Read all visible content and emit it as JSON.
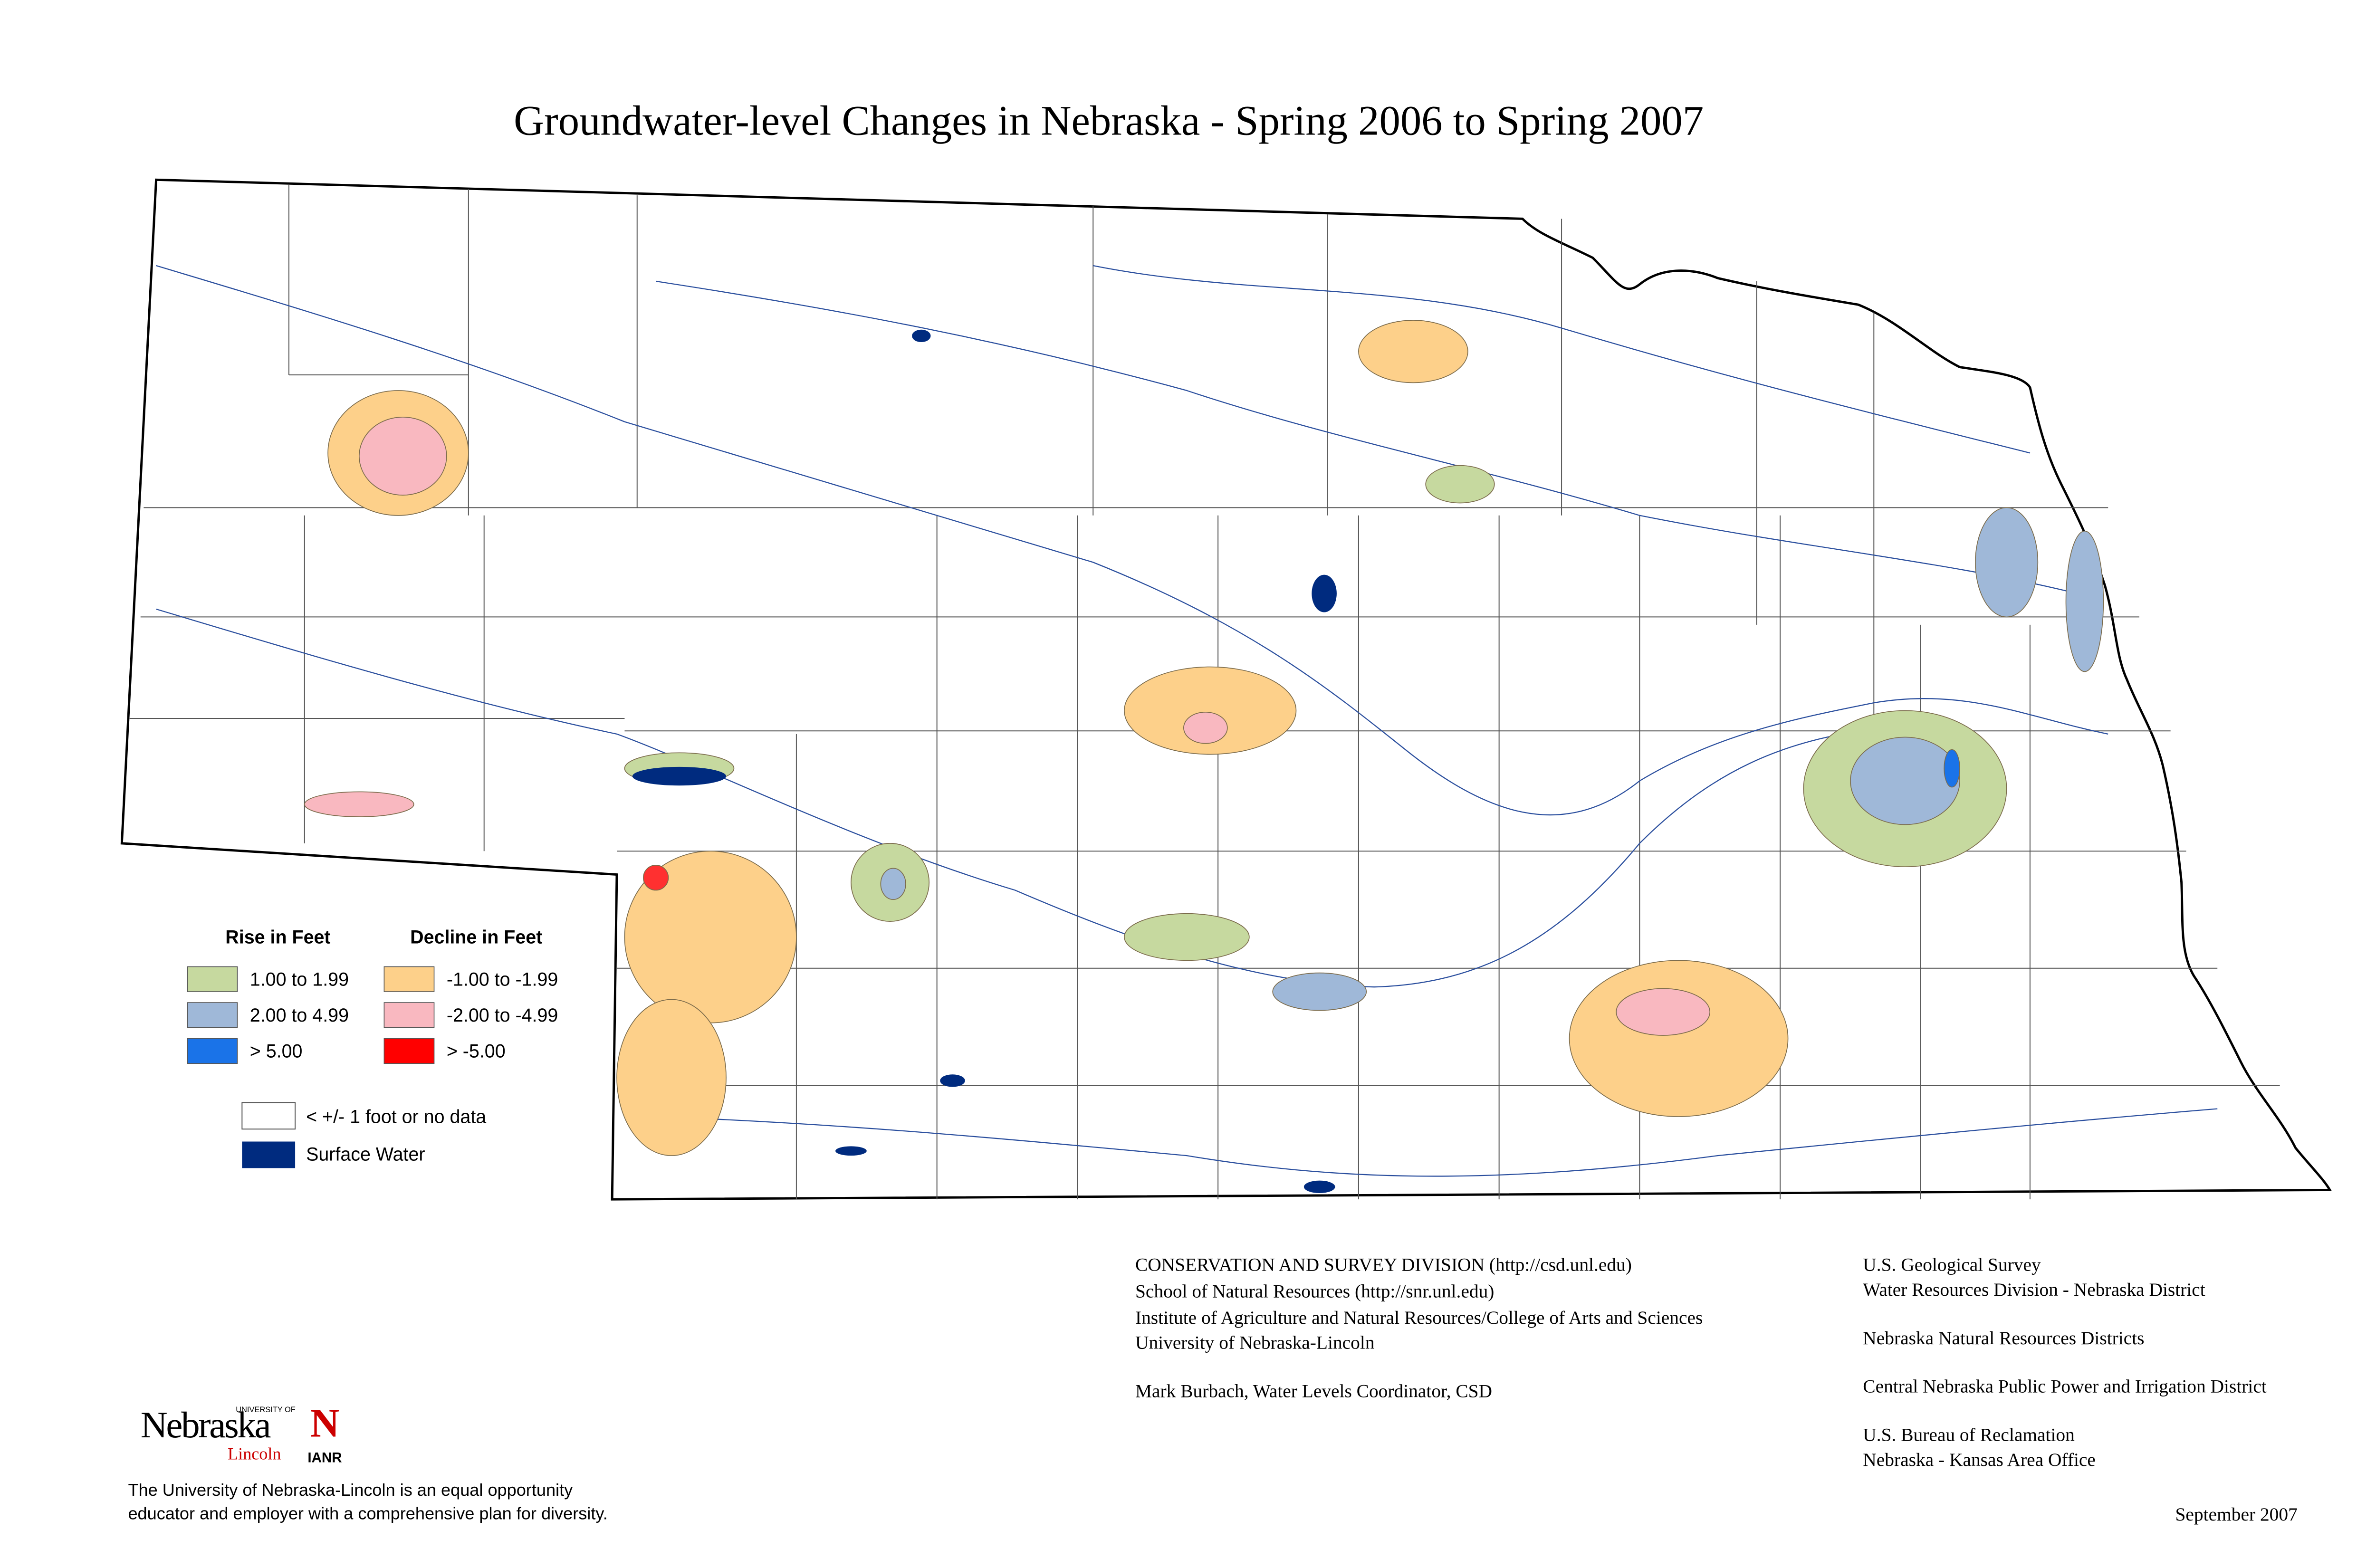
{
  "title": "Groundwater-level Changes in Nebraska - Spring 2006 to Spring 2007",
  "legend": {
    "rise_heading": "Rise in Feet",
    "decline_heading": "Decline in Feet",
    "rise": [
      "1.00 to 1.99",
      "2.00 to 4.99",
      "> 5.00"
    ],
    "decline": [
      "-1.00 to -1.99",
      "-2.00 to -4.99",
      "> -5.00"
    ],
    "no_data": "< +/- 1 foot or no data",
    "surface_water": "Surface Water"
  },
  "credits": {
    "csd": [
      "CONSERVATION AND SURVEY DIVISION (http://csd.unl.edu)",
      "School of Natural Resources (http://snr.unl.edu)",
      "Institute of Agriculture and Natural Resources/College of Arts and Sciences",
      "University of Nebraska-Lincoln"
    ],
    "coordinator": "Mark Burbach, Water Levels Coordinator, CSD",
    "contributors": [
      "U.S. Geological Survey",
      "Water Resources Division - Nebraska District",
      "Nebraska Natural Resources Districts",
      "Central Nebraska Public Power and Irrigation District",
      "U.S. Bureau of Reclamation",
      "Nebraska - Kansas Area Office"
    ]
  },
  "logo": {
    "university_of": "UNIVERSITY OF",
    "nebraska": "Nebraska",
    "lincoln": "Lincoln",
    "n": "N",
    "ianr": "IANR"
  },
  "disclaimer": [
    "The University of Nebraska-Lincoln is an equal opportunity",
    "educator and employer with a comprehensive plan for diversity."
  ],
  "date": "September 2007"
}
